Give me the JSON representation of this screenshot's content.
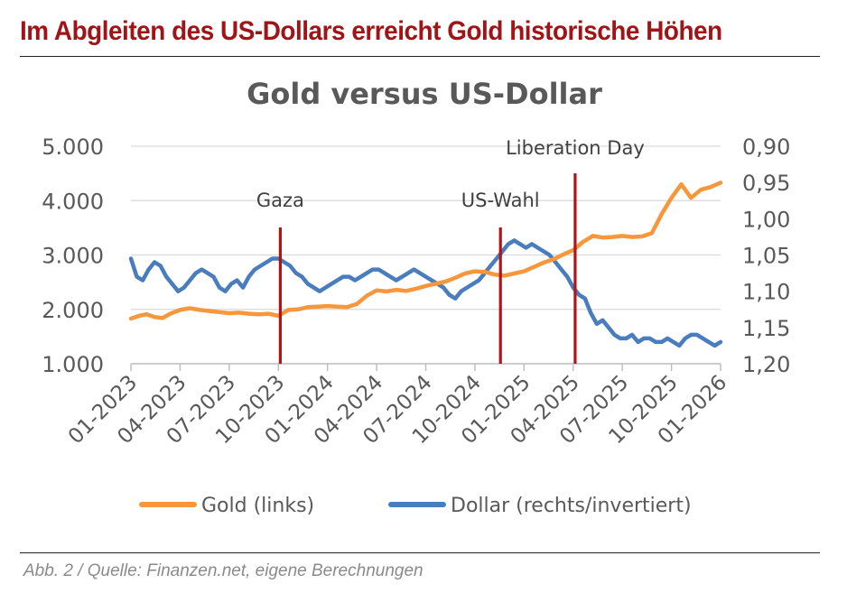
{
  "headline": "Im Abgleiten des US-Dollars erreicht Gold historische Höhen",
  "caption": "Abb. 2 / Quelle: Finanzen.net, eigene Berechnungen",
  "colors": {
    "headline": "#a01418",
    "gold": "#f7963b",
    "dollar": "#4a7dbd",
    "event": "#b11416",
    "grid": "#d9d9d9",
    "axis_text": "#595959"
  },
  "chart_data": {
    "type": "line",
    "title": "Gold versus US-Dollar",
    "x_range": [
      2023.0,
      2026.0
    ],
    "x_ticks": [
      {
        "x": 2023.0,
        "label": "01-2023"
      },
      {
        "x": 2023.25,
        "label": "04-2023"
      },
      {
        "x": 2023.5,
        "label": "07-2023"
      },
      {
        "x": 2023.75,
        "label": "10-2023"
      },
      {
        "x": 2024.0,
        "label": "01-2024"
      },
      {
        "x": 2024.25,
        "label": "04-2024"
      },
      {
        "x": 2024.5,
        "label": "07-2024"
      },
      {
        "x": 2024.75,
        "label": "10-2024"
      },
      {
        "x": 2025.0,
        "label": "01-2025"
      },
      {
        "x": 2025.25,
        "label": "04-2025"
      },
      {
        "x": 2025.5,
        "label": "07-2025"
      },
      {
        "x": 2025.75,
        "label": "10-2025"
      },
      {
        "x": 2026.0,
        "label": "01-2026"
      }
    ],
    "y_left": {
      "range": [
        1000,
        5000
      ],
      "ticks": [
        1000,
        2000,
        3000,
        4000,
        5000
      ],
      "labels": [
        "1.000",
        "2.000",
        "3.000",
        "4.000",
        "5.000"
      ]
    },
    "y_right": {
      "range": [
        0.9,
        1.2
      ],
      "inverted": true,
      "ticks": [
        0.9,
        0.95,
        1.0,
        1.05,
        1.1,
        1.15,
        1.2
      ],
      "labels": [
        "0,90",
        "0,95",
        "1,00",
        "1,05",
        "1,10",
        "1,15",
        "1,20"
      ]
    },
    "grid": true,
    "legend_position": "bottom",
    "events": [
      {
        "label": "Gaza",
        "x": 2023.76
      },
      {
        "label": "US-Wahl",
        "x": 2024.88
      },
      {
        "label": "Liberation Day",
        "x": 2025.26
      }
    ],
    "series": [
      {
        "name": "Gold (links)",
        "axis": "left",
        "color": "#f7963b",
        "x": [
          2023.0,
          2023.04,
          2023.08,
          2023.12,
          2023.16,
          2023.2,
          2023.25,
          2023.3,
          2023.35,
          2023.4,
          2023.45,
          2023.5,
          2023.55,
          2023.6,
          2023.65,
          2023.7,
          2023.75,
          2023.8,
          2023.85,
          2023.9,
          2023.95,
          2024.0,
          2024.05,
          2024.1,
          2024.15,
          2024.2,
          2024.25,
          2024.3,
          2024.35,
          2024.4,
          2024.45,
          2024.5,
          2024.55,
          2024.6,
          2024.65,
          2024.7,
          2024.75,
          2024.8,
          2024.85,
          2024.9,
          2024.95,
          2025.0,
          2025.05,
          2025.1,
          2025.15,
          2025.2,
          2025.25,
          2025.3,
          2025.35,
          2025.4,
          2025.45,
          2025.5,
          2025.55,
          2025.6,
          2025.65,
          2025.7,
          2025.75,
          2025.8,
          2025.85,
          2025.9,
          2025.95,
          2026.0
        ],
        "values": [
          1830,
          1880,
          1910,
          1860,
          1840,
          1920,
          1990,
          2020,
          1990,
          1970,
          1950,
          1930,
          1940,
          1920,
          1910,
          1920,
          1880,
          1990,
          2000,
          2040,
          2050,
          2060,
          2050,
          2040,
          2100,
          2250,
          2350,
          2330,
          2360,
          2340,
          2380,
          2430,
          2470,
          2510,
          2580,
          2660,
          2700,
          2690,
          2640,
          2620,
          2660,
          2700,
          2780,
          2860,
          2920,
          3010,
          3090,
          3240,
          3350,
          3320,
          3330,
          3350,
          3330,
          3340,
          3400,
          3750,
          4050,
          4300,
          4050,
          4200,
          4250,
          4330
        ]
      },
      {
        "name": "Dollar (rechts/invertiert)",
        "axis": "right",
        "color": "#4a7dbd",
        "x": [
          2023.0,
          2023.03,
          2023.06,
          2023.09,
          2023.12,
          2023.15,
          2023.18,
          2023.21,
          2023.24,
          2023.27,
          2023.3,
          2023.33,
          2023.36,
          2023.39,
          2023.42,
          2023.45,
          2023.48,
          2023.51,
          2023.54,
          2023.57,
          2023.6,
          2023.63,
          2023.66,
          2023.69,
          2023.72,
          2023.75,
          2023.78,
          2023.81,
          2023.84,
          2023.87,
          2023.9,
          2023.93,
          2023.96,
          2023.99,
          2024.02,
          2024.05,
          2024.08,
          2024.11,
          2024.14,
          2024.17,
          2024.2,
          2024.23,
          2024.26,
          2024.29,
          2024.32,
          2024.35,
          2024.38,
          2024.41,
          2024.44,
          2024.47,
          2024.5,
          2024.53,
          2024.56,
          2024.59,
          2024.62,
          2024.65,
          2024.68,
          2024.71,
          2024.74,
          2024.77,
          2024.8,
          2024.83,
          2024.86,
          2024.89,
          2024.92,
          2024.95,
          2024.98,
          2025.01,
          2025.04,
          2025.07,
          2025.1,
          2025.13,
          2025.16,
          2025.19,
          2025.22,
          2025.25,
          2025.28,
          2025.31,
          2025.34,
          2025.37,
          2025.4,
          2025.43,
          2025.46,
          2025.49,
          2025.52,
          2025.55,
          2025.58,
          2025.61,
          2025.64,
          2025.67,
          2025.7,
          2025.73,
          2025.76,
          2025.79,
          2025.82,
          2025.85,
          2025.88,
          2025.91,
          2025.94,
          2025.97,
          2026.0
        ],
        "values": [
          1.055,
          1.08,
          1.085,
          1.07,
          1.06,
          1.065,
          1.08,
          1.09,
          1.1,
          1.095,
          1.085,
          1.075,
          1.07,
          1.075,
          1.08,
          1.095,
          1.1,
          1.09,
          1.085,
          1.095,
          1.08,
          1.07,
          1.065,
          1.06,
          1.055,
          1.055,
          1.06,
          1.065,
          1.075,
          1.08,
          1.09,
          1.095,
          1.1,
          1.095,
          1.09,
          1.085,
          1.08,
          1.08,
          1.085,
          1.08,
          1.075,
          1.07,
          1.07,
          1.075,
          1.08,
          1.085,
          1.08,
          1.075,
          1.07,
          1.075,
          1.08,
          1.085,
          1.09,
          1.095,
          1.105,
          1.11,
          1.1,
          1.095,
          1.09,
          1.085,
          1.075,
          1.065,
          1.055,
          1.045,
          1.035,
          1.03,
          1.035,
          1.04,
          1.035,
          1.04,
          1.045,
          1.05,
          1.06,
          1.07,
          1.08,
          1.095,
          1.105,
          1.11,
          1.13,
          1.145,
          1.14,
          1.15,
          1.16,
          1.165,
          1.165,
          1.16,
          1.17,
          1.165,
          1.165,
          1.17,
          1.17,
          1.165,
          1.17,
          1.175,
          1.165,
          1.16,
          1.16,
          1.165,
          1.17,
          1.175,
          1.17
        ]
      }
    ]
  }
}
